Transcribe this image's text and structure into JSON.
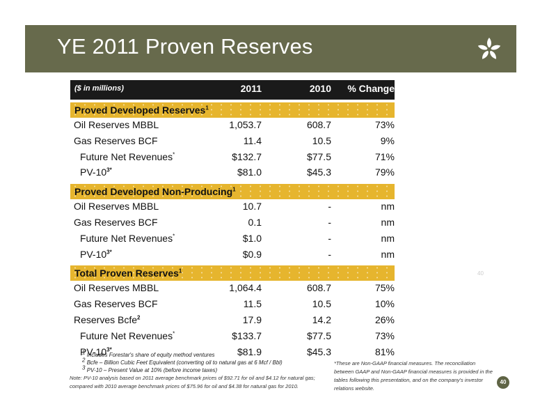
{
  "title": "YE 2011 Proven Reserves",
  "logo_icon": "leaf-star-logo-icon",
  "table": {
    "header": {
      "label": "($ in millions)",
      "col1": "2011",
      "col2": "2010",
      "col3": "% Change"
    },
    "sections": [
      {
        "title": "Proved Developed Reserves",
        "title_sup": "1",
        "rows": [
          {
            "label": "Oil Reserves MBBL",
            "sup": "",
            "v2011": "1,053.7",
            "v2010": "608.7",
            "change": "73%"
          },
          {
            "label": "Gas Reserves BCF",
            "sup": "",
            "v2011": "11.4",
            "v2010": "10.5",
            "change": "9%"
          },
          {
            "label": "Future Net Revenues",
            "sup": "*",
            "v2011": "$132.7",
            "v2010": "$77.5",
            "change": "71%"
          },
          {
            "label": "PV-10",
            "sup": "3*",
            "v2011": "$81.0",
            "v2010": "$45.3",
            "change": "79%"
          }
        ]
      },
      {
        "title": "Proved Developed Non-Producing",
        "title_sup": "1",
        "rows": [
          {
            "label": "Oil Reserves MBBL",
            "sup": "",
            "v2011": "10.7",
            "v2010": "-",
            "change": "nm"
          },
          {
            "label": "Gas Reserves BCF",
            "sup": "",
            "v2011": "0.1",
            "v2010": "-",
            "change": "nm"
          },
          {
            "label": "Future Net Revenues",
            "sup": "*",
            "v2011": "$1.0",
            "v2010": "-",
            "change": "nm"
          },
          {
            "label": "PV-10",
            "sup": "3*",
            "v2011": "$0.9",
            "v2010": "-",
            "change": "nm"
          }
        ]
      },
      {
        "title": "Total Proven Reserves",
        "title_sup": "1",
        "rows": [
          {
            "label": "Oil Reserves MBBL",
            "sup": "",
            "v2011": "1,064.4",
            "v2010": "608.7",
            "change": "75%"
          },
          {
            "label": "Gas Reserves BCF",
            "sup": "",
            "v2011": "11.5",
            "v2010": "10.5",
            "change": "10%"
          },
          {
            "label": "Reserves Bcfe",
            "sup": "2",
            "v2011": "17.9",
            "v2010": "14.2",
            "change": "26%"
          },
          {
            "label": "Future Net Revenues",
            "sup": "*",
            "v2011": "$133.7",
            "v2010": "$77.5",
            "change": "73%"
          },
          {
            "label": "PV-10",
            "sup": "3*",
            "v2011": "$81.9",
            "v2010": "$45.3",
            "change": "81%"
          }
        ]
      }
    ]
  },
  "footnotes": [
    {
      "num": "1",
      "text": "Includes Forestar's share of equity method ventures"
    },
    {
      "num": "2",
      "text": "Bcfe – Billion Cubic Feet Equivalent (converting oil to natural gas at 6 Mcf / Bbl)"
    },
    {
      "num": "3",
      "text": "PV-10 – Present Value at 10% (before income taxes)"
    }
  ],
  "note": "Note: PV-10 analysis based on 2011 average benchmark prices of $92.71 for oil and $4.12 for natural gas; compared with 2010 average benchmark prices of $75.96 for oil and $4.38 for natural gas for 2010.",
  "non_gaap": "*These are Non-GAAP financial measures.  The reconciliation between GAAP and Non-GAAP financial measures is provided in the tables following this presentation, and on the company's investor relations website.",
  "ghost_page": "40",
  "page_number": "40"
}
